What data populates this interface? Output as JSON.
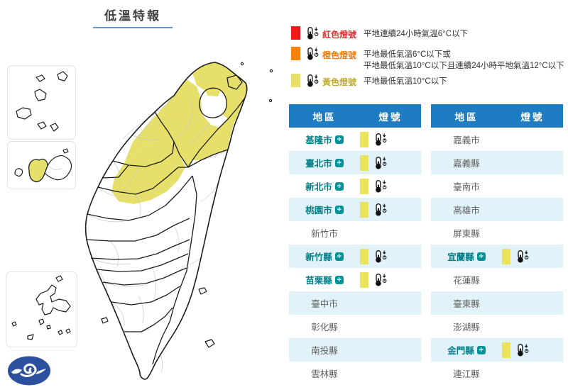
{
  "title": "低溫特報",
  "colors": {
    "header_blue": "#1e7dc2",
    "row_alt_cyan": "#e1f3f8",
    "warning_yellow": "#e6e06a",
    "signal_bar_yellow": "#ebe35c",
    "red": "#ee1a1a",
    "orange": "#f5820d",
    "teal_text": "#007d85",
    "teal_badge": "#009399",
    "gray_text": "#5f5f5f",
    "title_underline": "#5b9bd5",
    "logo_blue": "#2c4f9e",
    "legend_red_text": "#e03131",
    "legend_orange_text": "#f07d12",
    "legend_yellow_text": "#bfae2e"
  },
  "legend": [
    {
      "swatch": "#ee1a1a",
      "label": "紅色燈號",
      "label_color": "#e03131",
      "desc": [
        "平地連續24小時氣溫6°C以下"
      ]
    },
    {
      "swatch": "#f5820d",
      "label": "橙色燈號",
      "label_color": "#f07d12",
      "desc": [
        "平地最低氣溫6°C以下或",
        "平地最低氣溫10°C以下且連續24小時平地氣溫12°C以下"
      ]
    },
    {
      "swatch": "#e6e06a",
      "label": "黃色燈號",
      "label_color": "#bfae2e",
      "desc": [
        "平地最低氣溫10°C以下"
      ]
    }
  ],
  "tables": {
    "headers": {
      "region": "地區",
      "signal": "燈號"
    },
    "plus_icon": "+",
    "left": [
      {
        "name": "基隆市",
        "signal": "yellow"
      },
      {
        "name": "臺北市",
        "signal": "yellow"
      },
      {
        "name": "新北市",
        "signal": "yellow"
      },
      {
        "name": "桃園市",
        "signal": "yellow"
      },
      {
        "name": "新竹市",
        "signal": null
      },
      {
        "name": "新竹縣",
        "signal": "yellow"
      },
      {
        "name": "苗栗縣",
        "signal": "yellow"
      },
      {
        "name": "臺中市",
        "signal": null
      },
      {
        "name": "彰化縣",
        "signal": null
      },
      {
        "name": "南投縣",
        "signal": null
      },
      {
        "name": "雲林縣",
        "signal": null
      }
    ],
    "right": [
      {
        "name": "嘉義市",
        "signal": null
      },
      {
        "name": "嘉義縣",
        "signal": null
      },
      {
        "name": "臺南市",
        "signal": null
      },
      {
        "name": "高雄市",
        "signal": null
      },
      {
        "name": "屏東縣",
        "signal": null
      },
      {
        "name": "宜蘭縣",
        "signal": "yellow"
      },
      {
        "name": "花蓮縣",
        "signal": null
      },
      {
        "name": "臺東縣",
        "signal": null
      },
      {
        "name": "澎湖縣",
        "signal": null
      },
      {
        "name": "金門縣",
        "signal": "yellow"
      },
      {
        "name": "連江縣",
        "signal": null
      }
    ]
  }
}
